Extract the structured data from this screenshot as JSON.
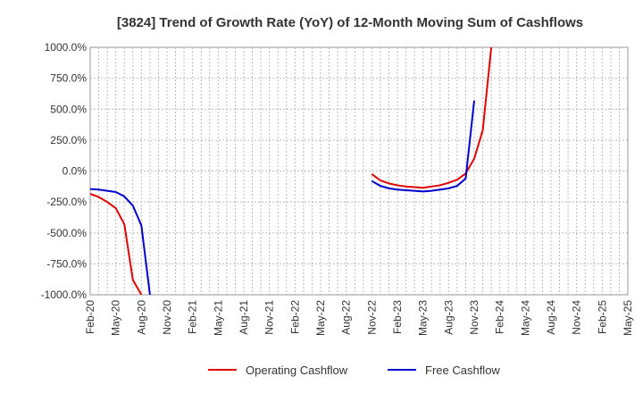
{
  "chart_data": {
    "type": "line",
    "title": "[3824]  Trend of Growth Rate (YoY) of 12-Month Moving Sum of Cashflows",
    "xlabel": "",
    "ylabel": "",
    "ylim": [
      -1000,
      1000
    ],
    "yticks": [
      1000,
      750,
      500,
      250,
      0,
      -250,
      -500,
      -750,
      -1000
    ],
    "ytick_labels": [
      "1000.0%",
      "750.0%",
      "500.0%",
      "250.0%",
      "0.0%",
      "-250.0%",
      "-500.0%",
      "-750.0%",
      "-1000.0%"
    ],
    "xtick_labels": [
      "Feb-20",
      "May-20",
      "Aug-20",
      "Nov-20",
      "Feb-21",
      "May-21",
      "Aug-21",
      "Nov-21",
      "Feb-22",
      "May-22",
      "Aug-22",
      "Nov-22",
      "Feb-23",
      "May-23",
      "Aug-23",
      "Nov-23",
      "Feb-24",
      "May-24",
      "Aug-24",
      "Nov-24",
      "Feb-25",
      "May-25"
    ],
    "grid": true,
    "legend_position": "bottom",
    "series": [
      {
        "name": "Operating Cashflow",
        "color": "#e00000",
        "points": [
          [
            "2020-02",
            -185
          ],
          [
            "2020-03",
            -210
          ],
          [
            "2020-04",
            -250
          ],
          [
            "2020-05",
            -300
          ],
          [
            "2020-06",
            -430
          ],
          [
            "2020-07",
            -880
          ],
          [
            "2020-08",
            -1000
          ]
        ],
        "segments2": [
          [
            "2022-11",
            -25
          ],
          [
            "2022-12",
            -75
          ],
          [
            "2023-01",
            -100
          ],
          [
            "2023-02",
            -115
          ],
          [
            "2023-03",
            -125
          ],
          [
            "2023-04",
            -130
          ],
          [
            "2023-05",
            -135
          ],
          [
            "2023-06",
            -125
          ],
          [
            "2023-07",
            -115
          ],
          [
            "2023-08",
            -95
          ],
          [
            "2023-09",
            -70
          ],
          [
            "2023-10",
            -20
          ],
          [
            "2023-11",
            100
          ],
          [
            "2023-12",
            330
          ],
          [
            "2024-01",
            1000
          ]
        ]
      },
      {
        "name": "Free Cashflow",
        "color": "#0000cc",
        "points": [
          [
            "2020-02",
            -145
          ],
          [
            "2020-03",
            -150
          ],
          [
            "2020-04",
            -160
          ],
          [
            "2020-05",
            -170
          ],
          [
            "2020-06",
            -205
          ],
          [
            "2020-07",
            -280
          ],
          [
            "2020-08",
            -440
          ],
          [
            "2020-09",
            -1000
          ]
        ],
        "segments2": [
          [
            "2022-11",
            -80
          ],
          [
            "2022-12",
            -120
          ],
          [
            "2023-01",
            -140
          ],
          [
            "2023-02",
            -150
          ],
          [
            "2023-03",
            -155
          ],
          [
            "2023-04",
            -160
          ],
          [
            "2023-05",
            -165
          ],
          [
            "2023-06",
            -160
          ],
          [
            "2023-07",
            -150
          ],
          [
            "2023-08",
            -140
          ],
          [
            "2023-09",
            -120
          ],
          [
            "2023-10",
            -60
          ],
          [
            "2023-11",
            570
          ]
        ]
      }
    ]
  }
}
